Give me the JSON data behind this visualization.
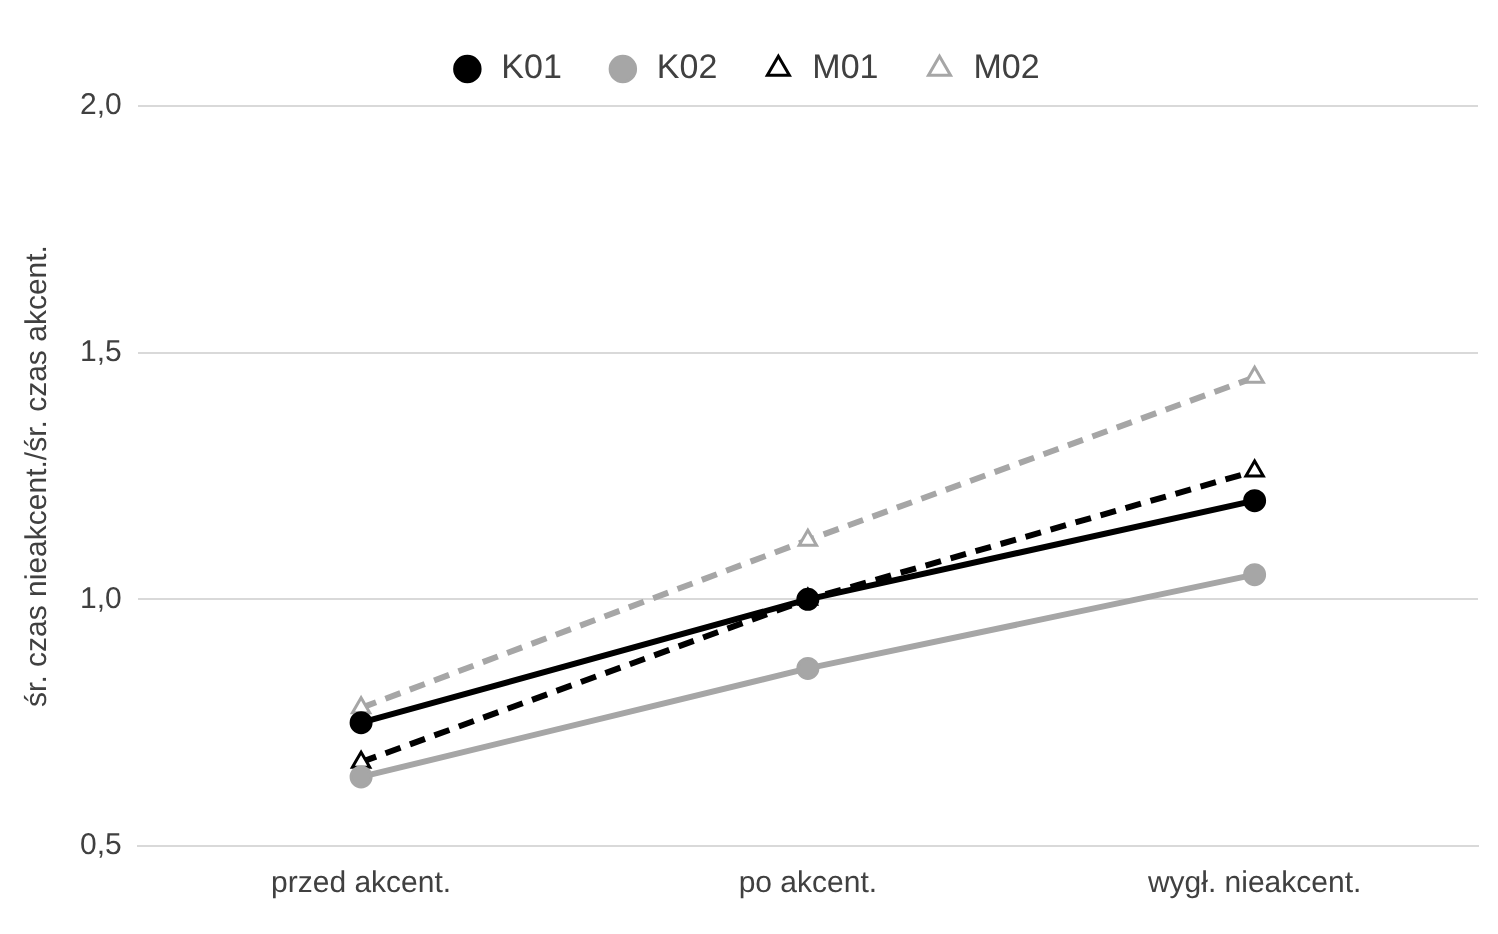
{
  "chart_data": {
    "type": "line",
    "ylabel": "śr. czas nieakcent./śr. czas akcent.",
    "categories": [
      "przed akcent.",
      "po akcent.",
      "wygł. nieakcent."
    ],
    "series": [
      {
        "name": "K01",
        "color": "#000000",
        "values": [
          0.75,
          1.0,
          1.2
        ],
        "marker": "circle",
        "line_style": "solid"
      },
      {
        "name": "K02",
        "color": "#a6a6a6",
        "values": [
          0.64,
          0.86,
          1.05
        ],
        "marker": "circle",
        "line_style": "solid"
      },
      {
        "name": "M01",
        "color": "#000000",
        "values": [
          0.67,
          1.0,
          1.26
        ],
        "marker": "triangle",
        "line_style": "dashed"
      },
      {
        "name": "M02",
        "color": "#a6a6a6",
        "values": [
          0.78,
          1.12,
          1.45
        ],
        "marker": "triangle",
        "line_style": "dashed"
      }
    ],
    "ylim": [
      0.5,
      2.0
    ],
    "yticks": [
      {
        "value": 0.5,
        "label": "0,5"
      },
      {
        "value": 1.0,
        "label": "1,0"
      },
      {
        "value": 1.5,
        "label": "1,5"
      },
      {
        "value": 2.0,
        "label": "2,0"
      }
    ],
    "grid": "y",
    "legend": "top"
  }
}
